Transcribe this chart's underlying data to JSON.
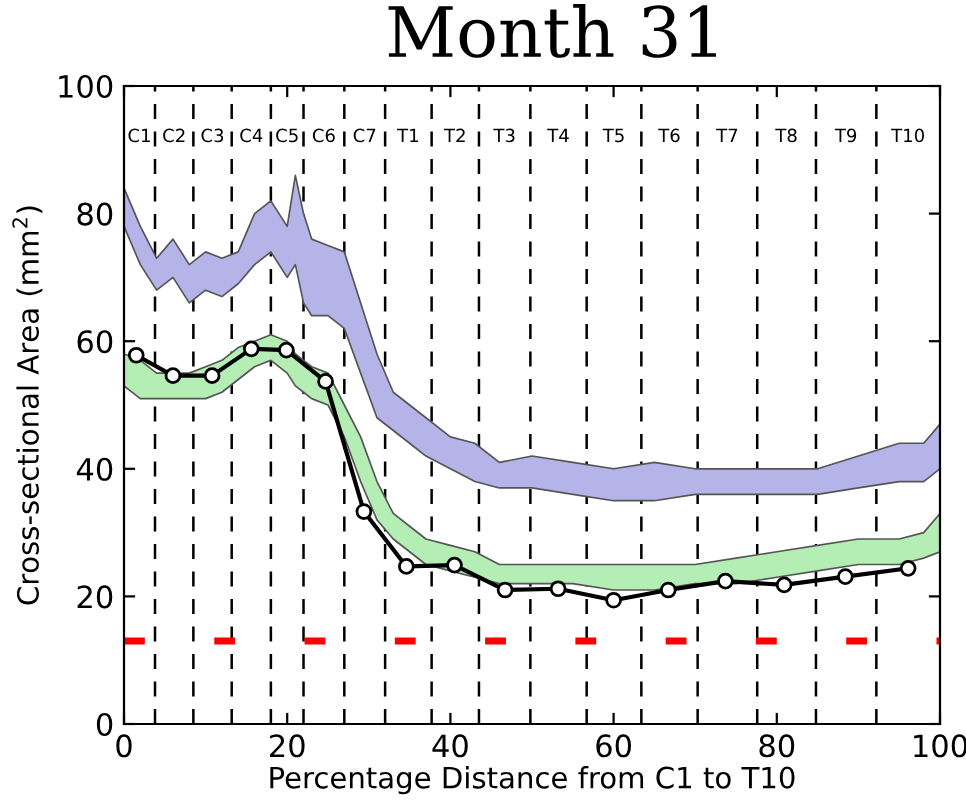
{
  "chart_data": {
    "type": "line",
    "title": "Month 31",
    "xlabel": "Percentage Distance from C1 to T10",
    "ylabel": "Cross-sectional Area (mm$^{2}$)",
    "xlim": [
      0,
      100
    ],
    "ylim": [
      0,
      100
    ],
    "xticks": [
      0,
      20,
      40,
      60,
      80,
      100
    ],
    "yticks": [
      0,
      20,
      40,
      60,
      80,
      100
    ],
    "grid": false,
    "legend": false,
    "series": [
      {
        "type": "area",
        "color": "#b4b4e8",
        "x": [
          0,
          2,
          4,
          6,
          8,
          10,
          12,
          14,
          16,
          18,
          20,
          21,
          22,
          23,
          25,
          27,
          29,
          31,
          33,
          35,
          37,
          40,
          43,
          46,
          50,
          55,
          60,
          65,
          70,
          75,
          80,
          85,
          90,
          95,
          98,
          100
        ],
        "values": [
          null,
          null,
          null,
          null,
          null,
          null,
          null,
          null,
          null,
          null,
          null,
          null,
          null,
          null,
          null,
          null,
          null,
          null,
          null,
          null,
          null,
          null,
          null,
          null,
          null,
          null,
          null,
          null,
          null,
          null,
          null,
          null,
          null,
          null,
          null,
          null
        ],
        "upper": [
          84,
          78,
          73,
          76,
          72,
          74,
          73,
          74,
          80,
          82,
          78,
          86,
          80,
          76,
          75,
          74,
          66,
          58,
          52,
          50,
          48,
          45,
          44,
          41,
          42,
          41,
          40,
          41,
          40,
          40,
          40,
          40,
          42,
          44,
          44,
          47
        ],
        "lower": [
          78,
          72,
          68,
          70,
          66,
          68,
          67,
          69,
          72,
          74,
          70,
          72,
          66,
          64,
          64,
          62,
          55,
          48,
          46,
          44,
          42,
          40,
          38,
          37,
          37,
          36,
          35,
          35,
          36,
          36,
          36,
          36,
          37,
          38,
          38,
          40
        ]
      },
      {
        "type": "area",
        "color": "#b4eeb4",
        "x": [
          0,
          2,
          4,
          6,
          8,
          10,
          12,
          14,
          16,
          18,
          20,
          21,
          22,
          23,
          25,
          27,
          29,
          31,
          33,
          35,
          37,
          40,
          43,
          46,
          50,
          55,
          60,
          65,
          70,
          75,
          80,
          85,
          90,
          95,
          98,
          100
        ],
        "values": [
          null,
          null,
          null,
          null,
          null,
          null,
          null,
          null,
          null,
          null,
          null,
          null,
          null,
          null,
          null,
          null,
          null,
          null,
          null,
          null,
          null,
          null,
          null,
          null,
          null,
          null,
          null,
          null,
          null,
          null,
          null,
          null,
          null,
          null,
          null,
          null
        ],
        "upper": [
          58,
          57,
          55,
          55,
          55,
          56,
          57,
          59,
          60,
          61,
          60,
          58,
          57,
          56,
          55,
          50,
          45,
          38,
          33,
          31,
          29,
          28,
          27,
          25,
          25,
          25,
          25,
          25,
          25,
          26,
          27,
          28,
          29,
          29,
          30,
          33
        ],
        "lower": [
          53,
          51,
          51,
          51,
          51,
          51,
          52,
          54,
          56,
          57,
          55,
          53,
          52,
          51,
          50,
          45,
          38,
          32,
          29,
          27,
          25,
          24,
          23,
          22,
          22,
          22,
          21,
          21,
          22,
          22,
          23,
          24,
          25,
          25,
          26,
          27
        ]
      },
      {
        "color": "#000000",
        "marker": "circle",
        "line_style": "solid",
        "x": [
          1.5,
          6.0,
          10.8,
          15.6,
          19.9,
          24.7,
          29.4,
          34.6,
          40.5,
          46.7,
          53.2,
          60.0,
          66.7,
          73.7,
          80.9,
          88.4,
          96.1
        ],
        "values": [
          57.8,
          54.6,
          54.6,
          58.8,
          58.6,
          53.7,
          33.3,
          24.7,
          24.9,
          21.0,
          21.2,
          19.4,
          21.0,
          22.4,
          21.8,
          23.1,
          24.4
        ]
      }
    ],
    "ref_lines": [
      {
        "axis": "x",
        "value": 3.8,
        "color": "#000000",
        "line_style": "dashed"
      },
      {
        "axis": "x",
        "value": 8.5,
        "color": "#000000",
        "line_style": "dashed"
      },
      {
        "axis": "x",
        "value": 13.2,
        "color": "#000000",
        "line_style": "dashed"
      },
      {
        "axis": "x",
        "value": 18.0,
        "color": "#000000",
        "line_style": "dashed"
      },
      {
        "axis": "x",
        "value": 22.0,
        "color": "#000000",
        "line_style": "dashed"
      },
      {
        "axis": "x",
        "value": 27.0,
        "color": "#000000",
        "line_style": "dashed"
      },
      {
        "axis": "x",
        "value": 32.0,
        "color": "#000000",
        "line_style": "dashed"
      },
      {
        "axis": "x",
        "value": 37.7,
        "color": "#000000",
        "line_style": "dashed"
      },
      {
        "axis": "x",
        "value": 43.5,
        "color": "#000000",
        "line_style": "dashed"
      },
      {
        "axis": "x",
        "value": 49.8,
        "color": "#000000",
        "line_style": "dashed"
      },
      {
        "axis": "x",
        "value": 56.7,
        "color": "#000000",
        "line_style": "dashed"
      },
      {
        "axis": "x",
        "value": 63.4,
        "color": "#000000",
        "line_style": "dashed"
      },
      {
        "axis": "x",
        "value": 70.3,
        "color": "#000000",
        "line_style": "dashed"
      },
      {
        "axis": "x",
        "value": 77.6,
        "color": "#000000",
        "line_style": "dashed"
      },
      {
        "axis": "x",
        "value": 84.8,
        "color": "#000000",
        "line_style": "dashed"
      },
      {
        "axis": "x",
        "value": 92.2,
        "color": "#000000",
        "line_style": "dashed"
      },
      {
        "axis": "y",
        "value": 13,
        "color": "#ff0000",
        "line_style": "dashed"
      }
    ],
    "annotations": [
      "C1",
      "C2",
      "C3",
      "C4",
      "C5",
      "C6",
      "C7",
      "T1",
      "T2",
      "T3",
      "T4",
      "T5",
      "T6",
      "T7",
      "T8",
      "T9",
      "T10"
    ]
  }
}
